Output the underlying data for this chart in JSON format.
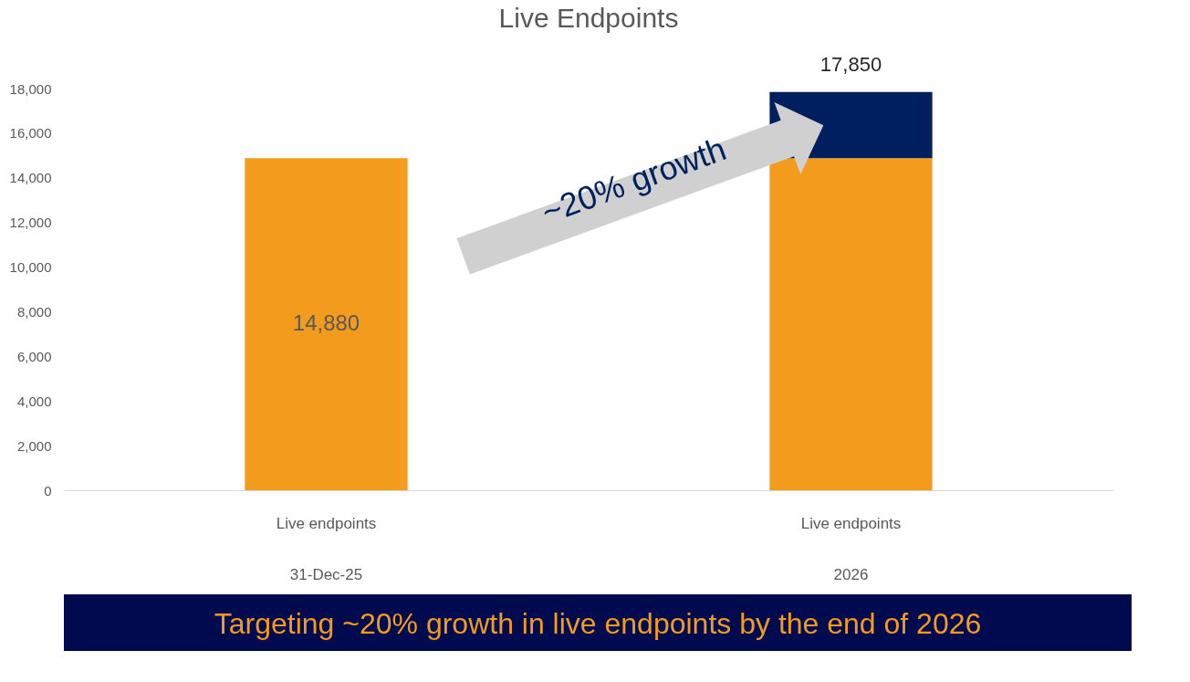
{
  "chart_data": {
    "type": "bar",
    "title": "Live Endpoints",
    "categories": [
      "Live endpoints\n31-Dec-25",
      "Live endpoints\n2026"
    ],
    "stacked": true,
    "series": [
      {
        "color": "#f29b1d",
        "values": [
          14880,
          14880
        ],
        "value_labels": [
          "14,880",
          null
        ]
      },
      {
        "color": "#001f5e",
        "values": [
          null,
          2970
        ]
      }
    ],
    "totals": [
      null,
      "17,850"
    ],
    "ylim": [
      0,
      18000
    ],
    "yticks": [
      0,
      {
        "value": 2000,
        "label": "2,000"
      },
      {
        "value": 4000,
        "label": "4,000"
      },
      {
        "value": 6000,
        "label": "6,000"
      },
      {
        "value": 8000,
        "label": "8,000"
      },
      {
        "value": 10000,
        "label": "10,000"
      },
      {
        "value": 12000,
        "label": "12,000"
      },
      {
        "value": 14000,
        "label": "14,000"
      },
      {
        "value": 16000,
        "label": "16,000"
      },
      {
        "value": 18000,
        "label": "18,000"
      }
    ],
    "grid": false,
    "legend": false,
    "annotations": [
      "~20% growth",
      "Targeting ~20% growth in live endpoints by the end of 2026"
    ]
  }
}
